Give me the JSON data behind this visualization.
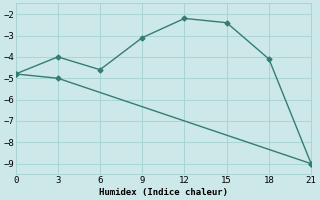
{
  "line1_x": [
    0,
    3,
    6,
    9,
    12,
    15,
    18,
    21
  ],
  "line1_y": [
    -4.8,
    -4.0,
    -4.6,
    -3.1,
    -2.2,
    -2.4,
    -4.1,
    -9.0
  ],
  "line2_x": [
    0,
    3,
    21
  ],
  "line2_y": [
    -4.8,
    -5.0,
    -9.0
  ],
  "color": "#357d70",
  "bg_color": "#cce8e8",
  "grid_color": "#aad4d4",
  "xlabel": "Humidex (Indice chaleur)",
  "xlim": [
    0,
    21
  ],
  "ylim": [
    -9.5,
    -1.5
  ],
  "xticks": [
    0,
    3,
    6,
    9,
    12,
    15,
    18,
    21
  ],
  "yticks": [
    -9,
    -8,
    -7,
    -6,
    -5,
    -4,
    -3,
    -2
  ],
  "marker": "D",
  "markersize": 2.5,
  "linewidth": 1.0
}
